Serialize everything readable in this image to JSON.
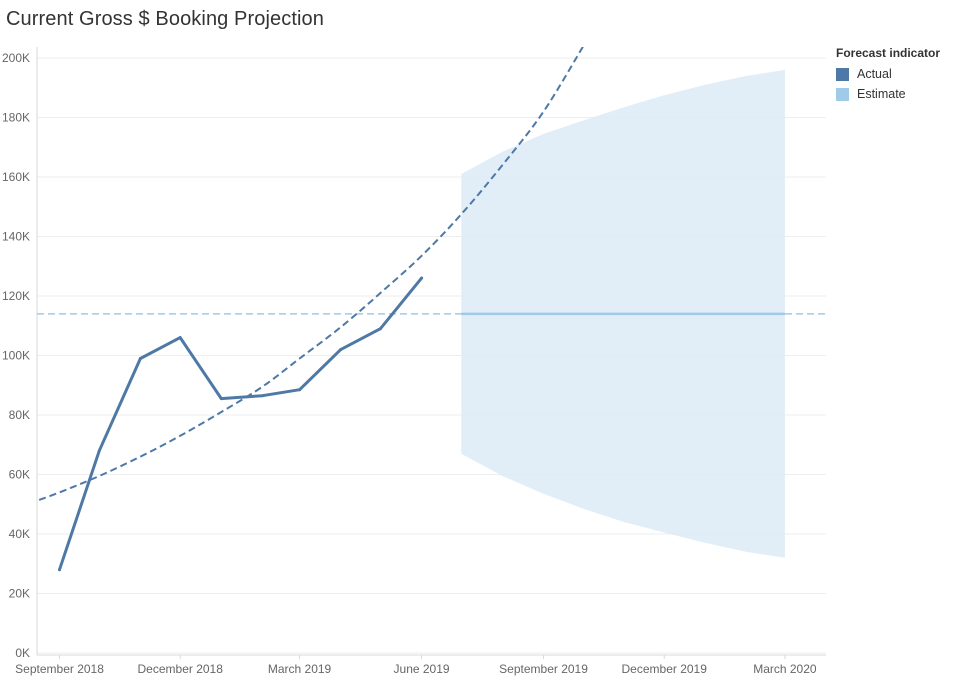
{
  "title": "Current Gross $ Booking Projection",
  "legend": {
    "title": "Forecast indicator",
    "items": [
      {
        "label": "Actual",
        "color": "#4E79A7"
      },
      {
        "label": "Estimate",
        "color": "#A0CBE8"
      }
    ]
  },
  "chart_data": {
    "type": "line",
    "title": "Current Gross $ Booking Projection",
    "xlabel": "",
    "ylabel": "",
    "ylim": [
      0,
      200000
    ],
    "xlim": [
      "2018-08-15",
      "2020-04-01"
    ],
    "x_ticks": [
      "September 2018",
      "December 2018",
      "March 2019",
      "June 2019",
      "September 2019",
      "December 2019",
      "March 2020"
    ],
    "y_ticks": [
      "0K",
      "20K",
      "40K",
      "60K",
      "80K",
      "100K",
      "120K",
      "140K",
      "160K",
      "180K",
      "200K"
    ],
    "series": [
      {
        "name": "Actual",
        "color": "#4E79A7",
        "x": [
          "2018-09-01",
          "2018-10-01",
          "2018-11-01",
          "2018-12-01",
          "2019-01-01",
          "2019-02-01",
          "2019-03-01",
          "2019-04-01",
          "2019-05-01",
          "2019-06-01"
        ],
        "values": [
          28000,
          68000,
          99000,
          106000,
          85500,
          86500,
          88500,
          102000,
          109000,
          126000
        ]
      }
    ],
    "trend_line": {
      "style": "dashed",
      "color": "#4E79A7",
      "x": [
        "2018-08-01",
        "2018-09-01",
        "2018-10-01",
        "2018-11-01",
        "2018-12-01",
        "2019-01-01",
        "2019-02-01",
        "2019-03-01",
        "2019-04-01",
        "2019-05-01",
        "2019-06-01",
        "2019-07-01",
        "2019-08-01",
        "2019-09-01",
        "2019-10-01"
      ],
      "values": [
        49000,
        54000,
        59500,
        66000,
        73000,
        81000,
        89500,
        99000,
        109500,
        121000,
        133500,
        147500,
        164000,
        182000,
        204000
      ]
    },
    "reference_line": {
      "value": 114000,
      "style": "dashed",
      "color": "#A0CBE8"
    },
    "estimate": {
      "name": "Estimate",
      "color": "#A0CBE8",
      "x": [
        "2019-07-01",
        "2019-08-01",
        "2019-09-01",
        "2019-10-01",
        "2019-11-01",
        "2019-12-01",
        "2020-01-01",
        "2020-02-01",
        "2020-03-01"
      ],
      "values": [
        114000,
        114000,
        114000,
        114000,
        114000,
        114000,
        114000,
        114000,
        114000
      ],
      "upper": [
        161000,
        168500,
        174500,
        179000,
        183500,
        187500,
        191000,
        194000,
        196000
      ],
      "lower": [
        67000,
        59500,
        53500,
        48500,
        44000,
        40500,
        37000,
        34000,
        32000
      ]
    }
  }
}
